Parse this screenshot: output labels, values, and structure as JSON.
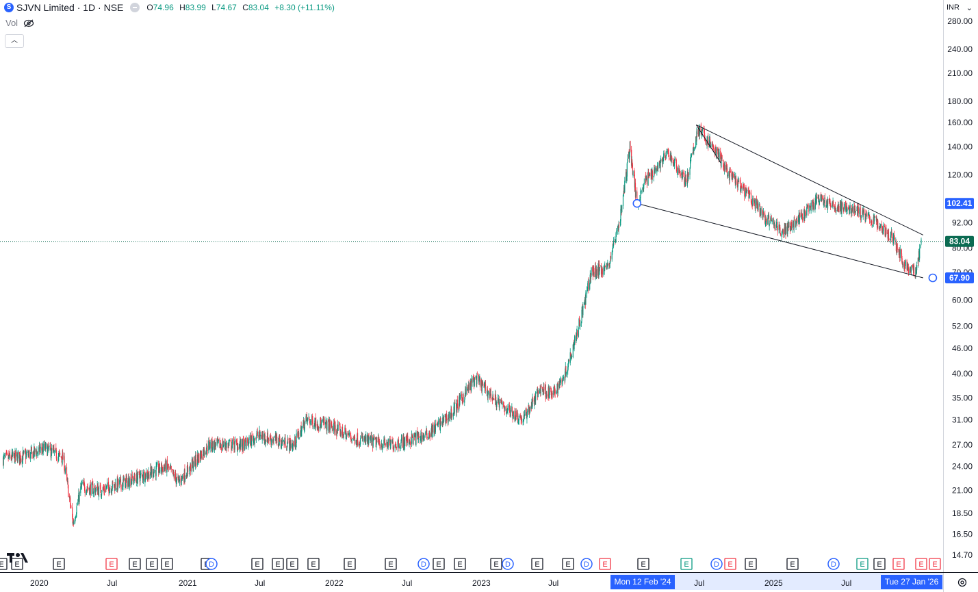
{
  "legend": {
    "symbol_icon": "tradingview-symbol-logo",
    "title": "SJVN Limited · 1D · NSE",
    "open_label": "O",
    "open": "74.96",
    "high_label": "H",
    "high": "83.99",
    "low_label": "L",
    "low": "74.67",
    "close_label": "C",
    "close": "83.04",
    "change": "+8.30 (+11.11%)",
    "vol_label": "Vol"
  },
  "currency": {
    "label": "INR",
    "icon": "chevron-down-icon"
  },
  "colors": {
    "up": "#089981",
    "down": "#f23645",
    "accent": "#2962ff",
    "price_line": "#0b6b52",
    "earnings": "#f23645",
    "dividend": "#2962ff"
  },
  "price_axis": {
    "ticks": [
      "280.00",
      "240.00",
      "210.00",
      "180.00",
      "160.00",
      "140.00",
      "120.00",
      "92.00",
      "80.00",
      "70.00",
      "60.00",
      "52.00",
      "46.00",
      "40.00",
      "35.00",
      "31.00",
      "27.00",
      "24.00",
      "21.00",
      "18.50",
      "16.50",
      "14.70"
    ],
    "tick_values": [
      280,
      240,
      210,
      180,
      160,
      140,
      120,
      92,
      80,
      70,
      60,
      52,
      46,
      40,
      35,
      31,
      27,
      24,
      21,
      18.5,
      16.5,
      14.7
    ],
    "badges": [
      {
        "label": "102.41",
        "value": 102.41,
        "kind": "drawing"
      },
      {
        "label": "83.04",
        "value": 83.04,
        "kind": "last"
      },
      {
        "label": "67.90",
        "value": 67.9,
        "kind": "drawing"
      }
    ]
  },
  "time_axis": {
    "labels": [
      "2020",
      "Jul",
      "2021",
      "Jul",
      "2022",
      "Jul",
      "2023",
      "Jul",
      "Jul",
      "2025",
      "Jul"
    ],
    "crosshair_start": "Mon 12 Feb '24",
    "crosshair_end": "Tue 27 Jan '26"
  },
  "chart_data": {
    "type": "candlestick",
    "title": "SJVN Limited · 1D · NSE",
    "y_scale": "log",
    "ylim": [
      14.7,
      280
    ],
    "last_close": 83.04,
    "approx_close_path": [
      [
        "2019-10-01",
        25
      ],
      [
        "2019-12-01",
        25.5
      ],
      [
        "2020-01-15",
        26.5
      ],
      [
        "2020-03-01",
        25
      ],
      [
        "2020-03-25",
        17.5
      ],
      [
        "2020-04-15",
        21.5
      ],
      [
        "2020-06-01",
        21
      ],
      [
        "2020-09-01",
        22.5
      ],
      [
        "2020-11-15",
        24
      ],
      [
        "2020-12-15",
        22
      ],
      [
        "2021-03-01",
        27
      ],
      [
        "2021-06-01",
        27
      ],
      [
        "2021-07-01",
        28.5
      ],
      [
        "2021-10-01",
        27
      ],
      [
        "2021-11-01",
        31
      ],
      [
        "2022-01-01",
        30
      ],
      [
        "2022-03-01",
        28
      ],
      [
        "2022-06-01",
        27
      ],
      [
        "2022-09-01",
        28.5
      ],
      [
        "2022-11-01",
        32
      ],
      [
        "2023-01-01",
        39
      ],
      [
        "2023-03-01",
        34
      ],
      [
        "2023-05-01",
        31
      ],
      [
        "2023-06-15",
        37
      ],
      [
        "2023-07-15",
        35.5
      ],
      [
        "2023-08-15",
        40
      ],
      [
        "2023-09-15",
        51
      ],
      [
        "2023-10-01",
        58
      ],
      [
        "2023-10-20",
        70
      ],
      [
        "2023-12-01",
        72
      ],
      [
        "2024-01-01",
        95
      ],
      [
        "2024-01-25",
        140
      ],
      [
        "2024-02-12",
        102
      ],
      [
        "2024-03-01",
        115
      ],
      [
        "2024-05-01",
        135
      ],
      [
        "2024-06-15",
        115
      ],
      [
        "2024-07-15",
        155
      ],
      [
        "2024-09-01",
        135
      ],
      [
        "2024-10-01",
        120
      ],
      [
        "2024-11-15",
        108
      ],
      [
        "2025-01-01",
        94
      ],
      [
        "2025-02-15",
        88
      ],
      [
        "2025-04-01",
        95
      ],
      [
        "2025-05-15",
        105
      ],
      [
        "2025-07-01",
        100
      ],
      [
        "2025-08-15",
        99
      ],
      [
        "2025-10-01",
        93
      ],
      [
        "2025-11-15",
        85
      ],
      [
        "2025-12-20",
        72
      ],
      [
        "2026-01-15",
        70
      ],
      [
        "2026-01-27",
        83.04
      ]
    ],
    "trendlines": [
      {
        "from": [
          "2024-07-10",
          158
        ],
        "to": [
          "2026-02-01",
          86
        ]
      },
      {
        "from": [
          "2024-02-12",
          102.41
        ],
        "to": [
          "2026-02-01",
          67.9
        ]
      },
      {
        "from": [
          "2024-07-10",
          158
        ],
        "to": [
          "2024-09-10",
          128
        ]
      }
    ],
    "events": [
      "E",
      "E",
      "E",
      "E",
      "E",
      "E",
      "E",
      "E",
      "D",
      "E",
      "E",
      "E",
      "E",
      "E",
      "E",
      "D",
      "E",
      "E",
      "E",
      "D",
      "E",
      "E",
      "D",
      "E",
      "E",
      "E",
      "D",
      "E",
      "E",
      "E",
      "D",
      "E",
      "E",
      "E",
      "E",
      "E",
      "E",
      "flash",
      "E"
    ]
  }
}
